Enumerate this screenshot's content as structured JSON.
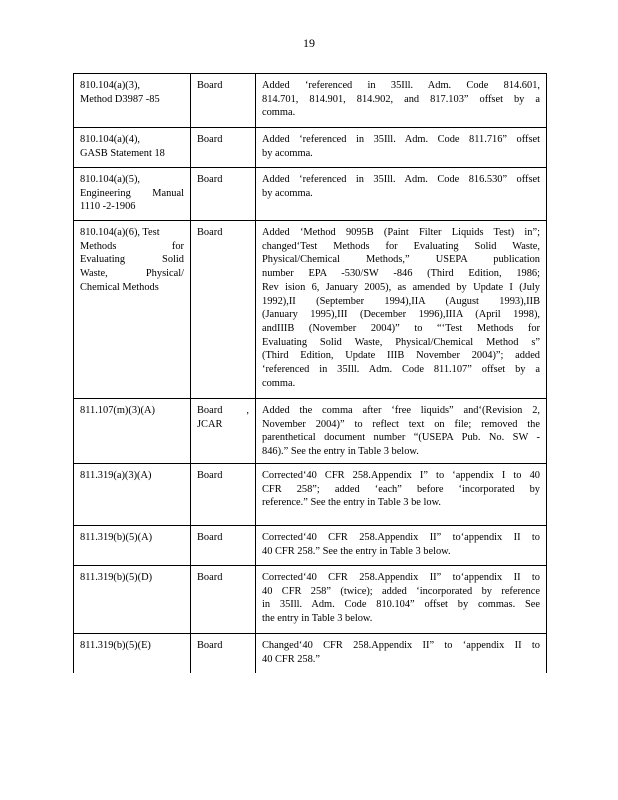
{
  "page_number": "19",
  "rows": [
    {
      "section": [
        "810.104(a)(3),",
        "Method   D3987  -85"
      ],
      "by": [
        "Board"
      ],
      "change": [
        "Added  ‘referenced    in 35Ill.  Adm.  Code  814.601,",
        "814.701,   814.901,   814.902,   and  817.103”   offset  by  a",
        "comma."
      ]
    },
    {
      "section": [
        "810.104(a)(4),",
        "GASB   Statement    18"
      ],
      "by": [
        "Board"
      ],
      "change": [
        "Added  ‘referenced     in 35Ill.  Adm.  Code  811.716”   offset",
        "by acomma."
      ]
    },
    {
      "section": [
        "810.104(a)(5),",
        "Engineering    Manual",
        "1110  -2-1906"
      ],
      "by": [
        "Board"
      ],
      "change": [
        "Added  ‘referenced     in 35Ill.  Adm.  Code  816.530”   offset",
        "by acomma."
      ]
    },
    {
      "section": [
        "810.104(a)(6),      Test",
        "Methods    for",
        "Evaluating    Solid",
        "Waste,   Physical/",
        "Chemical     Methods"
      ],
      "by": [
        "Board"
      ],
      "change": [
        "Added  ‘Method   9095B  (Paint  Filter  Liquids  Test)  in”;",
        "changed‘Test    Methods   for Evaluating   Solid Waste,",
        "Physical/Chemical       Methods,”  USEPA   publication",
        "number   EPA -530/SW  -846  (Third  Edition,   1986;",
        "Rev ision  6, January   2005),  as amended   by Update  I (July",
        "1992),II   (September    1994),IIA   (August   1993),IIB",
        "(January   1995),III   (December    1996),IIIA   (April  1998),",
        "andIIIB   (November    2004)”  to “‘Test  Methods   for",
        "Evaluating   Solid  Waste,  Physical/Chemical     Method  s”",
        "(Third  Edition,  Update  IIIB  November   2004)”;  added",
        "‘referenced    in 35Ill.  Adm.  Code  811.107”   offset  by  a",
        "comma."
      ]
    },
    {
      "section": [
        "811.107(m)(3)(A)"
      ],
      "by": [
        "Board  ,",
        "JCAR"
      ],
      "change": [
        "Added  the  comma   after  ‘free  liquids”  and‘(Revision     2,",
        "November    2004)”   to reflect   text  on file;  removed   the",
        "parenthetical    document    number   “(USEPA    Pub.  No.  SW -",
        "846).”    See   the  entry   in Table   3 below."
      ]
    },
    {
      "section": [
        "811.319(a)(3)(A)"
      ],
      "by": [
        "Board"
      ],
      "change": [
        "Corrected‘40     CFR  258.Appendix    I” to ‘appendix    I to  40",
        "CFR  258”;  added  ‘each”  before  ‘incorporated      by",
        "reference.”     See  the  entry   in Table   3 be low."
      ]
    },
    {
      "section": [
        "811.319(b)(5)(A)"
      ],
      "by": [
        "Board"
      ],
      "change": [
        "Corrected‘40     CFR   258.Appendix    II”  to‘appendix    II to",
        "40  CFR   258.”   See   the  entry   in Table  3  below."
      ]
    },
    {
      "section": [
        "811.319(b)(5)(D)"
      ],
      "by": [
        "Board"
      ],
      "change": [
        "Corrected‘40     CFR  258.Appendix    II” to‘appendix    II to",
        "40 CFR   258”  (twice);  added  ‘incorporated    by reference",
        "in 35Ill.  Adm.  Code  810.104”    offset  by commas.    See",
        "the  entry   in Table   3 below."
      ]
    },
    {
      "section": [
        "811.319(b)(5)(E)"
      ],
      "by": [
        "Board"
      ],
      "change": [
        "Changed‘40     CFR   258.Appendix     II”  to  ‘appendix    II  to",
        "40  CFR   258.”"
      ]
    }
  ]
}
